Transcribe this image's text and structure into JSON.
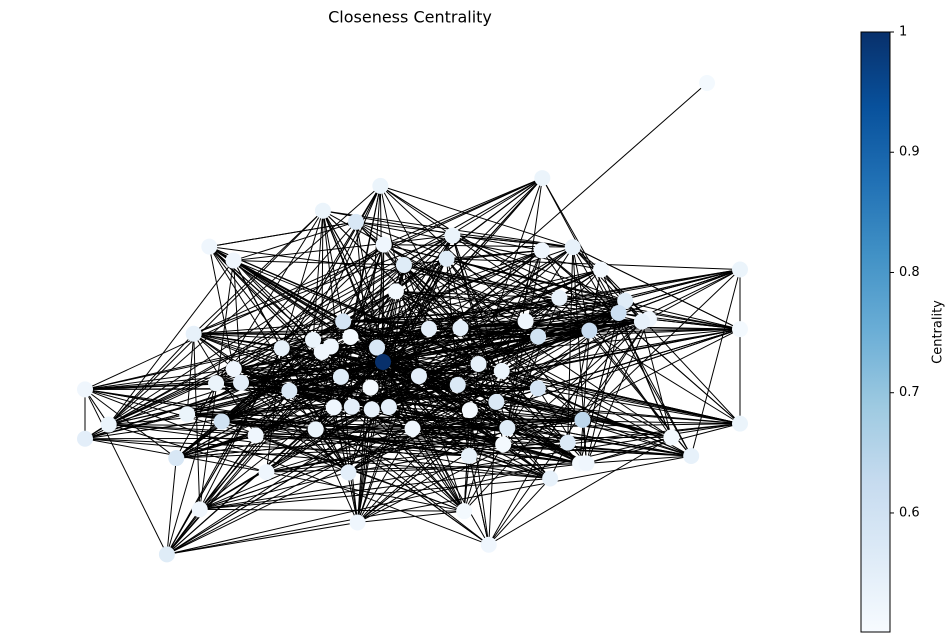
{
  "chart_data": {
    "type": "network",
    "title": "Closeness Centrality",
    "colorbar_label": "Centrality",
    "colormap": "Blues",
    "clim": [
      0.501,
      1.0
    ],
    "cticks": [
      0.6,
      0.7,
      0.8,
      0.9,
      1.0
    ],
    "node_values": [
      1.0,
      0.51,
      0.64,
      0.62,
      0.61,
      0.6,
      0.6,
      0.59,
      0.59,
      0.58,
      0.58,
      0.58,
      0.57,
      0.57,
      0.57,
      0.57,
      0.56,
      0.56,
      0.56,
      0.56,
      0.56,
      0.56,
      0.55,
      0.55,
      0.55,
      0.55,
      0.55,
      0.55,
      0.55,
      0.55,
      0.54,
      0.54,
      0.54,
      0.54,
      0.54,
      0.54,
      0.54,
      0.54,
      0.54,
      0.54,
      0.53,
      0.53,
      0.53,
      0.53,
      0.53,
      0.53,
      0.53,
      0.53,
      0.53,
      0.53,
      0.53,
      0.53,
      0.52,
      0.52,
      0.52,
      0.52,
      0.52,
      0.52,
      0.52,
      0.52,
      0.52,
      0.52,
      0.52,
      0.52,
      0.52,
      0.52,
      0.52,
      0.52,
      0.52,
      0.52,
      0.51,
      0.51,
      0.51,
      0.51,
      0.51,
      0.51,
      0.51,
      0.51,
      0.51,
      0.51
    ]
  }
}
